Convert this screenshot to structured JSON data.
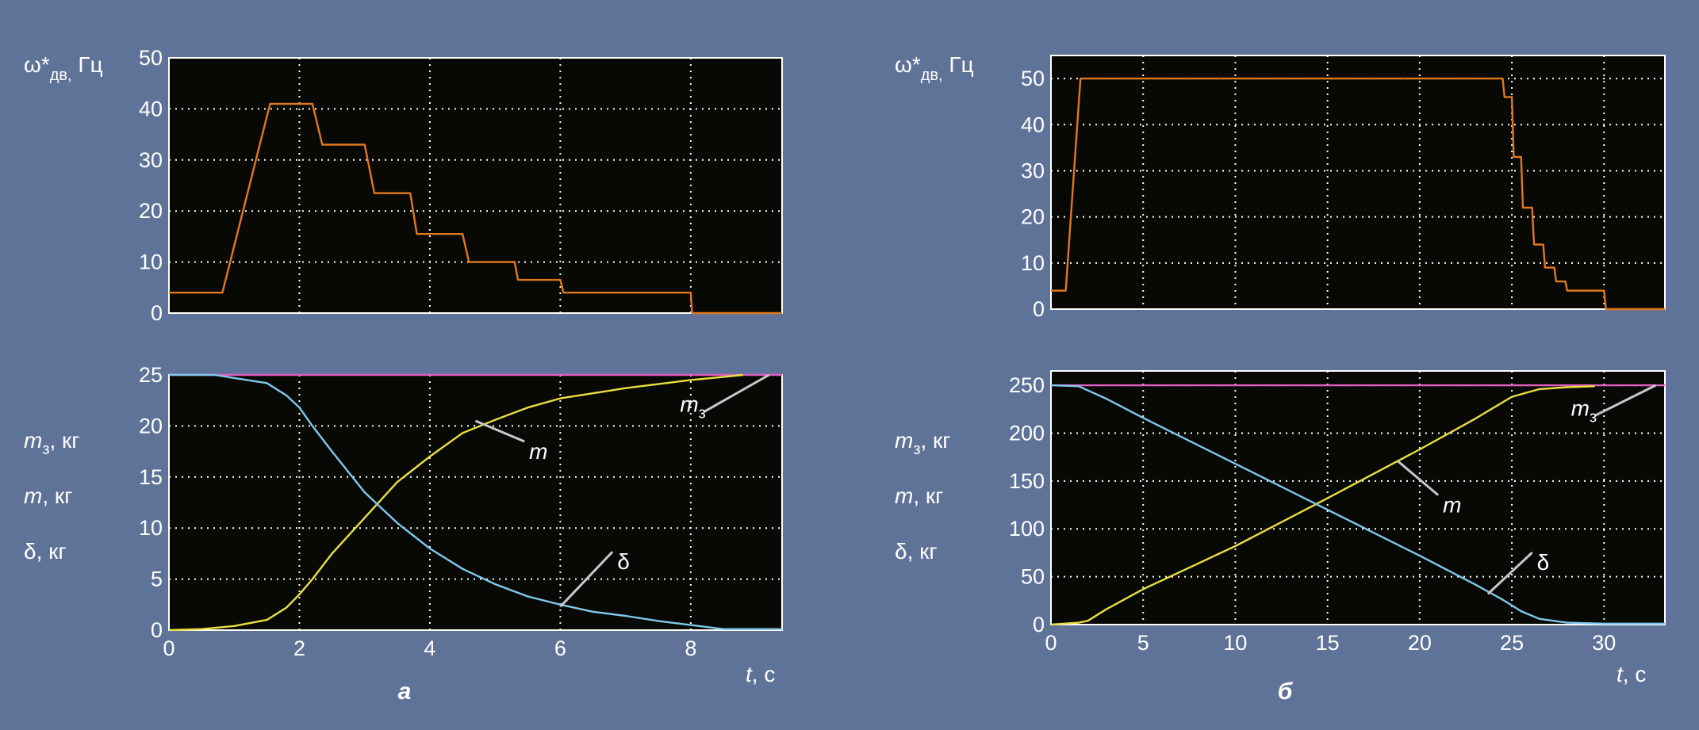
{
  "chart_data": [
    {
      "id": "a_top",
      "type": "line",
      "xlim": [
        0,
        9.4
      ],
      "ylim": [
        0,
        50
      ],
      "xticks": [
        0,
        2,
        4,
        6,
        8
      ],
      "yticks": [
        0,
        10,
        20,
        30,
        40,
        50
      ],
      "show_xtick_labels": false,
      "ylabel": "ω*дв, Гц",
      "grid": true,
      "series": [
        {
          "color": "#e07820",
          "step": false,
          "points": [
            [
              0,
              4
            ],
            [
              0.82,
              4
            ],
            [
              1.55,
              41
            ],
            [
              2.2,
              41
            ],
            [
              2.35,
              33
            ],
            [
              3.0,
              33
            ],
            [
              3.15,
              23.5
            ],
            [
              3.7,
              23.5
            ],
            [
              3.8,
              15.5
            ],
            [
              4.5,
              15.5
            ],
            [
              4.6,
              10
            ],
            [
              5.3,
              10
            ],
            [
              5.35,
              6.5
            ],
            [
              6.0,
              6.5
            ],
            [
              6.05,
              4
            ],
            [
              8.0,
              4
            ],
            [
              8.02,
              0
            ],
            [
              9.4,
              0
            ]
          ]
        }
      ]
    },
    {
      "id": "a_bottom",
      "type": "line",
      "xlim": [
        0,
        9.4
      ],
      "ylim": [
        0,
        25
      ],
      "xticks": [
        0,
        2,
        4,
        6,
        8
      ],
      "yticks": [
        0,
        5,
        10,
        15,
        20,
        25
      ],
      "show_xtick_labels": true,
      "xlabel": "t, с",
      "ylabels": [
        "m3, кг",
        "m, кг",
        "δ, кг"
      ],
      "caption": "а",
      "grid": true,
      "series": [
        {
          "name": "m3",
          "color": "#e060c0",
          "points": [
            [
              0,
              25
            ],
            [
              9.4,
              25
            ]
          ]
        },
        {
          "name": "m",
          "color": "#e8e040",
          "points": [
            [
              0,
              0
            ],
            [
              0.5,
              0.1
            ],
            [
              1.0,
              0.4
            ],
            [
              1.5,
              1.0
            ],
            [
              1.8,
              2.2
            ],
            [
              2.0,
              3.5
            ],
            [
              2.2,
              5.0
            ],
            [
              2.5,
              7.5
            ],
            [
              3.0,
              11.0
            ],
            [
              3.5,
              14.5
            ],
            [
              4.0,
              17.0
            ],
            [
              4.5,
              19.3
            ],
            [
              5.0,
              20.6
            ],
            [
              5.5,
              21.8
            ],
            [
              6.0,
              22.7
            ],
            [
              6.5,
              23.2
            ],
            [
              7.0,
              23.7
            ],
            [
              7.5,
              24.1
            ],
            [
              8.0,
              24.5
            ],
            [
              8.5,
              24.8
            ],
            [
              8.8,
              25.0
            ]
          ]
        },
        {
          "name": "δ",
          "color": "#80c8ec",
          "points": [
            [
              0,
              25
            ],
            [
              0.7,
              25
            ],
            [
              1.0,
              24.7
            ],
            [
              1.5,
              24.2
            ],
            [
              1.8,
              23.0
            ],
            [
              2.0,
              21.8
            ],
            [
              2.2,
              20.0
            ],
            [
              2.5,
              17.5
            ],
            [
              3.0,
              13.5
            ],
            [
              3.5,
              10.5
            ],
            [
              4.0,
              8.0
            ],
            [
              4.5,
              6.0
            ],
            [
              5.0,
              4.5
            ],
            [
              5.5,
              3.3
            ],
            [
              6.0,
              2.5
            ],
            [
              6.5,
              1.8
            ],
            [
              7.0,
              1.4
            ],
            [
              7.5,
              0.9
            ],
            [
              8.0,
              0.5
            ],
            [
              8.5,
              0.1
            ],
            [
              9.4,
              0.1
            ]
          ]
        }
      ],
      "annotations": [
        {
          "text": "m",
          "x": 5.45,
          "y": 17.7,
          "line_to": [
            4.7,
            20.5
          ]
        },
        {
          "text": "m3",
          "x": 8.2,
          "y": 20.6,
          "line_to": [
            9.2,
            25.0
          ]
        },
        {
          "text": "δ",
          "x": 6.8,
          "y": 6.9,
          "line_to": [
            6.0,
            2.3
          ]
        }
      ]
    },
    {
      "id": "b_top",
      "type": "line",
      "xlim": [
        0,
        33.3
      ],
      "ylim": [
        0,
        55
      ],
      "xticks": [
        0,
        5,
        10,
        15,
        20,
        25,
        30
      ],
      "yticks": [
        0,
        10,
        20,
        30,
        40,
        50
      ],
      "show_xtick_labels": false,
      "ylabel": "ω*дв, Гц",
      "grid": true,
      "series": [
        {
          "color": "#e07820",
          "step": false,
          "points": [
            [
              0,
              4
            ],
            [
              0.8,
              4
            ],
            [
              1.6,
              50
            ],
            [
              24.5,
              50
            ],
            [
              24.6,
              46
            ],
            [
              25.0,
              46
            ],
            [
              25.1,
              33
            ],
            [
              25.5,
              33
            ],
            [
              25.6,
              22
            ],
            [
              26.1,
              22
            ],
            [
              26.2,
              14
            ],
            [
              26.7,
              14
            ],
            [
              26.8,
              9
            ],
            [
              27.3,
              9
            ],
            [
              27.4,
              6
            ],
            [
              27.9,
              6
            ],
            [
              28.0,
              4
            ],
            [
              30.0,
              4
            ],
            [
              30.1,
              0
            ],
            [
              33.3,
              0
            ]
          ]
        }
      ]
    },
    {
      "id": "b_bottom",
      "type": "line",
      "xlim": [
        0,
        33.3
      ],
      "ylim": [
        0,
        265
      ],
      "xticks": [
        0,
        5,
        10,
        15,
        20,
        25,
        30
      ],
      "yticks": [
        0,
        50,
        100,
        150,
        200,
        250
      ],
      "show_xtick_labels": true,
      "xlabel": "t, с",
      "ylabels": [
        "m3, кг",
        "m, кг",
        "δ, кг"
      ],
      "caption": "б",
      "grid": true,
      "series": [
        {
          "name": "m3",
          "color": "#e060c0",
          "points": [
            [
              0,
              250
            ],
            [
              33.3,
              250
            ]
          ]
        },
        {
          "name": "m",
          "color": "#e8e040",
          "points": [
            [
              0,
              0
            ],
            [
              1.5,
              2
            ],
            [
              2.0,
              4
            ],
            [
              3.0,
              16
            ],
            [
              5.0,
              37
            ],
            [
              10.0,
              82
            ],
            [
              15.0,
              132
            ],
            [
              20.0,
              183
            ],
            [
              23.0,
              215
            ],
            [
              25.0,
              238
            ],
            [
              26.5,
              246
            ],
            [
              28.0,
              248
            ],
            [
              29.5,
              249
            ]
          ]
        },
        {
          "name": "δ",
          "color": "#80c8ec",
          "points": [
            [
              0,
              250
            ],
            [
              1.5,
              249
            ],
            [
              3.0,
              236
            ],
            [
              5.0,
              216
            ],
            [
              10.0,
              168
            ],
            [
              15.0,
              120
            ],
            [
              20.0,
              72
            ],
            [
              23.0,
              42
            ],
            [
              24.5,
              26
            ],
            [
              25.5,
              14
            ],
            [
              26.5,
              6
            ],
            [
              28.0,
              2
            ],
            [
              30.0,
              1
            ],
            [
              33.3,
              1
            ]
          ]
        }
      ],
      "annotations": [
        {
          "text": "m",
          "x": 21.0,
          "y": 127,
          "line_to": [
            18.8,
            171
          ]
        },
        {
          "text": "m3",
          "x": 29.5,
          "y": 210,
          "line_to": [
            32.8,
            250
          ]
        },
        {
          "text": "δ",
          "x": 26.1,
          "y": 67,
          "line_to": [
            23.7,
            32
          ]
        }
      ]
    }
  ]
}
